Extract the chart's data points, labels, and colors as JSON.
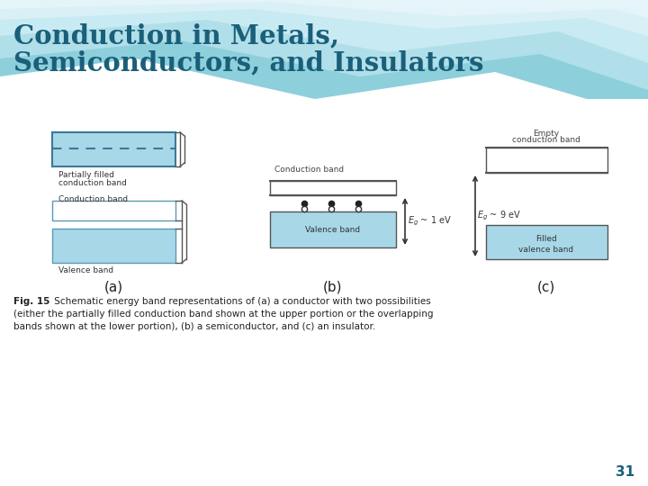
{
  "title_line1": "Conduction in Metals,",
  "title_line2": "Semiconductors, and Insulators",
  "title_color": "#1a5f7a",
  "band_fill_color": "#a8d8e8",
  "band_edge_color": "#5b9ab5",
  "page_number": "31",
  "caption_bold": "Fig. 15  Schematic energy band representations of (a) a conductor with two possibilities",
  "caption_line2": "(either the partially filled conduction band shown at the upper portion or the overlapping",
  "caption_line3": "bands shown at the lower portion), (b) a semiconductor, and (c) an insulator."
}
